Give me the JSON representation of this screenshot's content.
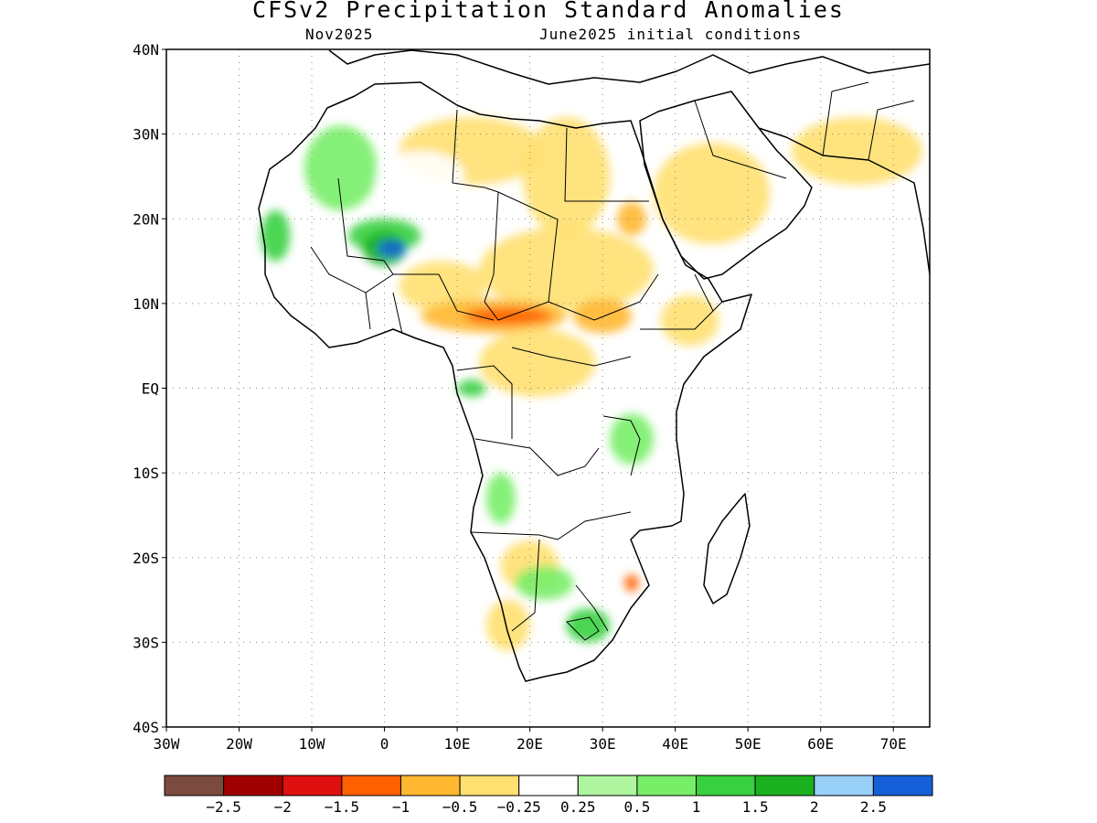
{
  "title": "CFSv2 Precipitation Standard Anomalies",
  "valid_month": "Nov2025",
  "init_conditions": "June2025 initial conditions",
  "map": {
    "lon_range": [
      -30,
      75
    ],
    "lat_range": [
      -40,
      40
    ],
    "lat_ticks": [
      {
        "value": 40,
        "label": "40N"
      },
      {
        "value": 30,
        "label": "30N"
      },
      {
        "value": 20,
        "label": "20N"
      },
      {
        "value": 10,
        "label": "10N"
      },
      {
        "value": 0,
        "label": "EQ"
      },
      {
        "value": -10,
        "label": "10S"
      },
      {
        "value": -20,
        "label": "20S"
      },
      {
        "value": -30,
        "label": "30S"
      },
      {
        "value": -40,
        "label": "40S"
      }
    ],
    "lon_ticks": [
      {
        "value": -30,
        "label": "30W"
      },
      {
        "value": -20,
        "label": "20W"
      },
      {
        "value": -10,
        "label": "10W"
      },
      {
        "value": 0,
        "label": "0"
      },
      {
        "value": 10,
        "label": "10E"
      },
      {
        "value": 20,
        "label": "20E"
      },
      {
        "value": 30,
        "label": "30E"
      },
      {
        "value": 40,
        "label": "40E"
      },
      {
        "value": 50,
        "label": "50E"
      },
      {
        "value": 60,
        "label": "60E"
      },
      {
        "value": 70,
        "label": "70E"
      }
    ]
  },
  "colorbar": {
    "colors": [
      "#7b4b3f",
      "#a00000",
      "#e01010",
      "#ff6000",
      "#ffb830",
      "#ffe070",
      "#ffffff",
      "#b0f5a0",
      "#78ee68",
      "#38d040",
      "#1ab020",
      "#98d0f8",
      "#1560d8"
    ],
    "labels": [
      "−2.5",
      "−2",
      "−1.5",
      "−1",
      "−0.5",
      "−0.25",
      "0.25",
      "0.5",
      "1",
      "1.5",
      "2",
      "2.5"
    ]
  },
  "anomaly_regions": [
    {
      "name": "sahara-north",
      "level": -0.5,
      "lon": 12,
      "lat": 28,
      "rlon": 10,
      "rlat": 4
    },
    {
      "name": "sahara-central",
      "level": -0.25,
      "lon": 5,
      "lat": 25,
      "rlon": 6,
      "rlat": 3
    },
    {
      "name": "egypt-libya",
      "level": -0.5,
      "lon": 25,
      "lat": 25,
      "rlon": 6,
      "rlat": 7
    },
    {
      "name": "arabia",
      "level": -0.5,
      "lon": 45,
      "lat": 23,
      "rlon": 8,
      "rlat": 6
    },
    {
      "name": "iran",
      "level": -0.5,
      "lon": 65,
      "lat": 28,
      "rlon": 9,
      "rlat": 4
    },
    {
      "name": "sahel-east",
      "level": -0.5,
      "lon": 25,
      "lat": 14,
      "rlon": 12,
      "rlat": 5
    },
    {
      "name": "sahel-west",
      "level": -0.5,
      "lon": 8,
      "lat": 12,
      "rlon": 6,
      "rlat": 3
    },
    {
      "name": "central-belt",
      "level": -1,
      "lon": 15,
      "lat": 8.5,
      "rlon": 10,
      "rlat": 2
    },
    {
      "name": "central-core",
      "level": -1.5,
      "lon": 17,
      "lat": 8.5,
      "rlon": 6,
      "rlat": 1
    },
    {
      "name": "south-sudan",
      "level": -1,
      "lon": 30,
      "lat": 8.5,
      "rlon": 4,
      "rlat": 2
    },
    {
      "name": "sudan-hotspot",
      "level": -1,
      "lon": 34,
      "lat": 20,
      "rlon": 2,
      "rlat": 2
    },
    {
      "name": "congo-north",
      "level": -0.5,
      "lon": 21,
      "lat": 3,
      "rlon": 8,
      "rlat": 4
    },
    {
      "name": "sahara-west-green",
      "level": 0.5,
      "lon": -6,
      "lat": 26,
      "rlon": 5,
      "rlat": 5
    },
    {
      "name": "mali-green",
      "level": 1,
      "lon": 0,
      "lat": 18,
      "rlon": 5,
      "rlat": 2
    },
    {
      "name": "niger-wet",
      "level": 1.5,
      "lon": 0,
      "lat": 16.5,
      "rlon": 3,
      "rlat": 2
    },
    {
      "name": "niger-core",
      "level": 2.5,
      "lon": 1,
      "lat": 16.5,
      "rlon": 2,
      "rlat": 1
    },
    {
      "name": "senegal-green",
      "level": 1,
      "lon": -15,
      "lat": 18,
      "rlon": 2,
      "rlat": 3
    },
    {
      "name": "gabon-green",
      "level": 1,
      "lon": 12,
      "lat": 0,
      "rlon": 2,
      "rlat": 1
    },
    {
      "name": "tanzania-green",
      "level": 0.5,
      "lon": 34,
      "lat": -6,
      "rlon": 3,
      "rlat": 3
    },
    {
      "name": "angola-green",
      "level": 0.5,
      "lon": 16,
      "lat": -13,
      "rlon": 2,
      "rlat": 3
    },
    {
      "name": "angola-dry",
      "level": -0.5,
      "lon": 20,
      "lat": -21,
      "rlon": 4,
      "rlat": 3
    },
    {
      "name": "botswana-green",
      "level": 0.5,
      "lon": 22,
      "lat": -23,
      "rlon": 4,
      "rlat": 2
    },
    {
      "name": "south-africa-green",
      "level": 1,
      "lon": 28,
      "lat": -28,
      "rlon": 3,
      "rlat": 2
    },
    {
      "name": "mozambique-dry",
      "level": -1.5,
      "lon": 34,
      "lat": -23,
      "rlon": 1,
      "rlat": 1
    },
    {
      "name": "namibia-dry",
      "level": -0.5,
      "lon": 17,
      "lat": -28,
      "rlon": 3,
      "rlat": 3
    },
    {
      "name": "madagascar-dry",
      "level": -0.25,
      "lon": 46,
      "lat": -19,
      "rlon": 2,
      "rlat": 5
    },
    {
      "name": "horn-dry",
      "level": -0.5,
      "lon": 42,
      "lat": 8,
      "rlon": 4,
      "rlat": 3
    }
  ]
}
